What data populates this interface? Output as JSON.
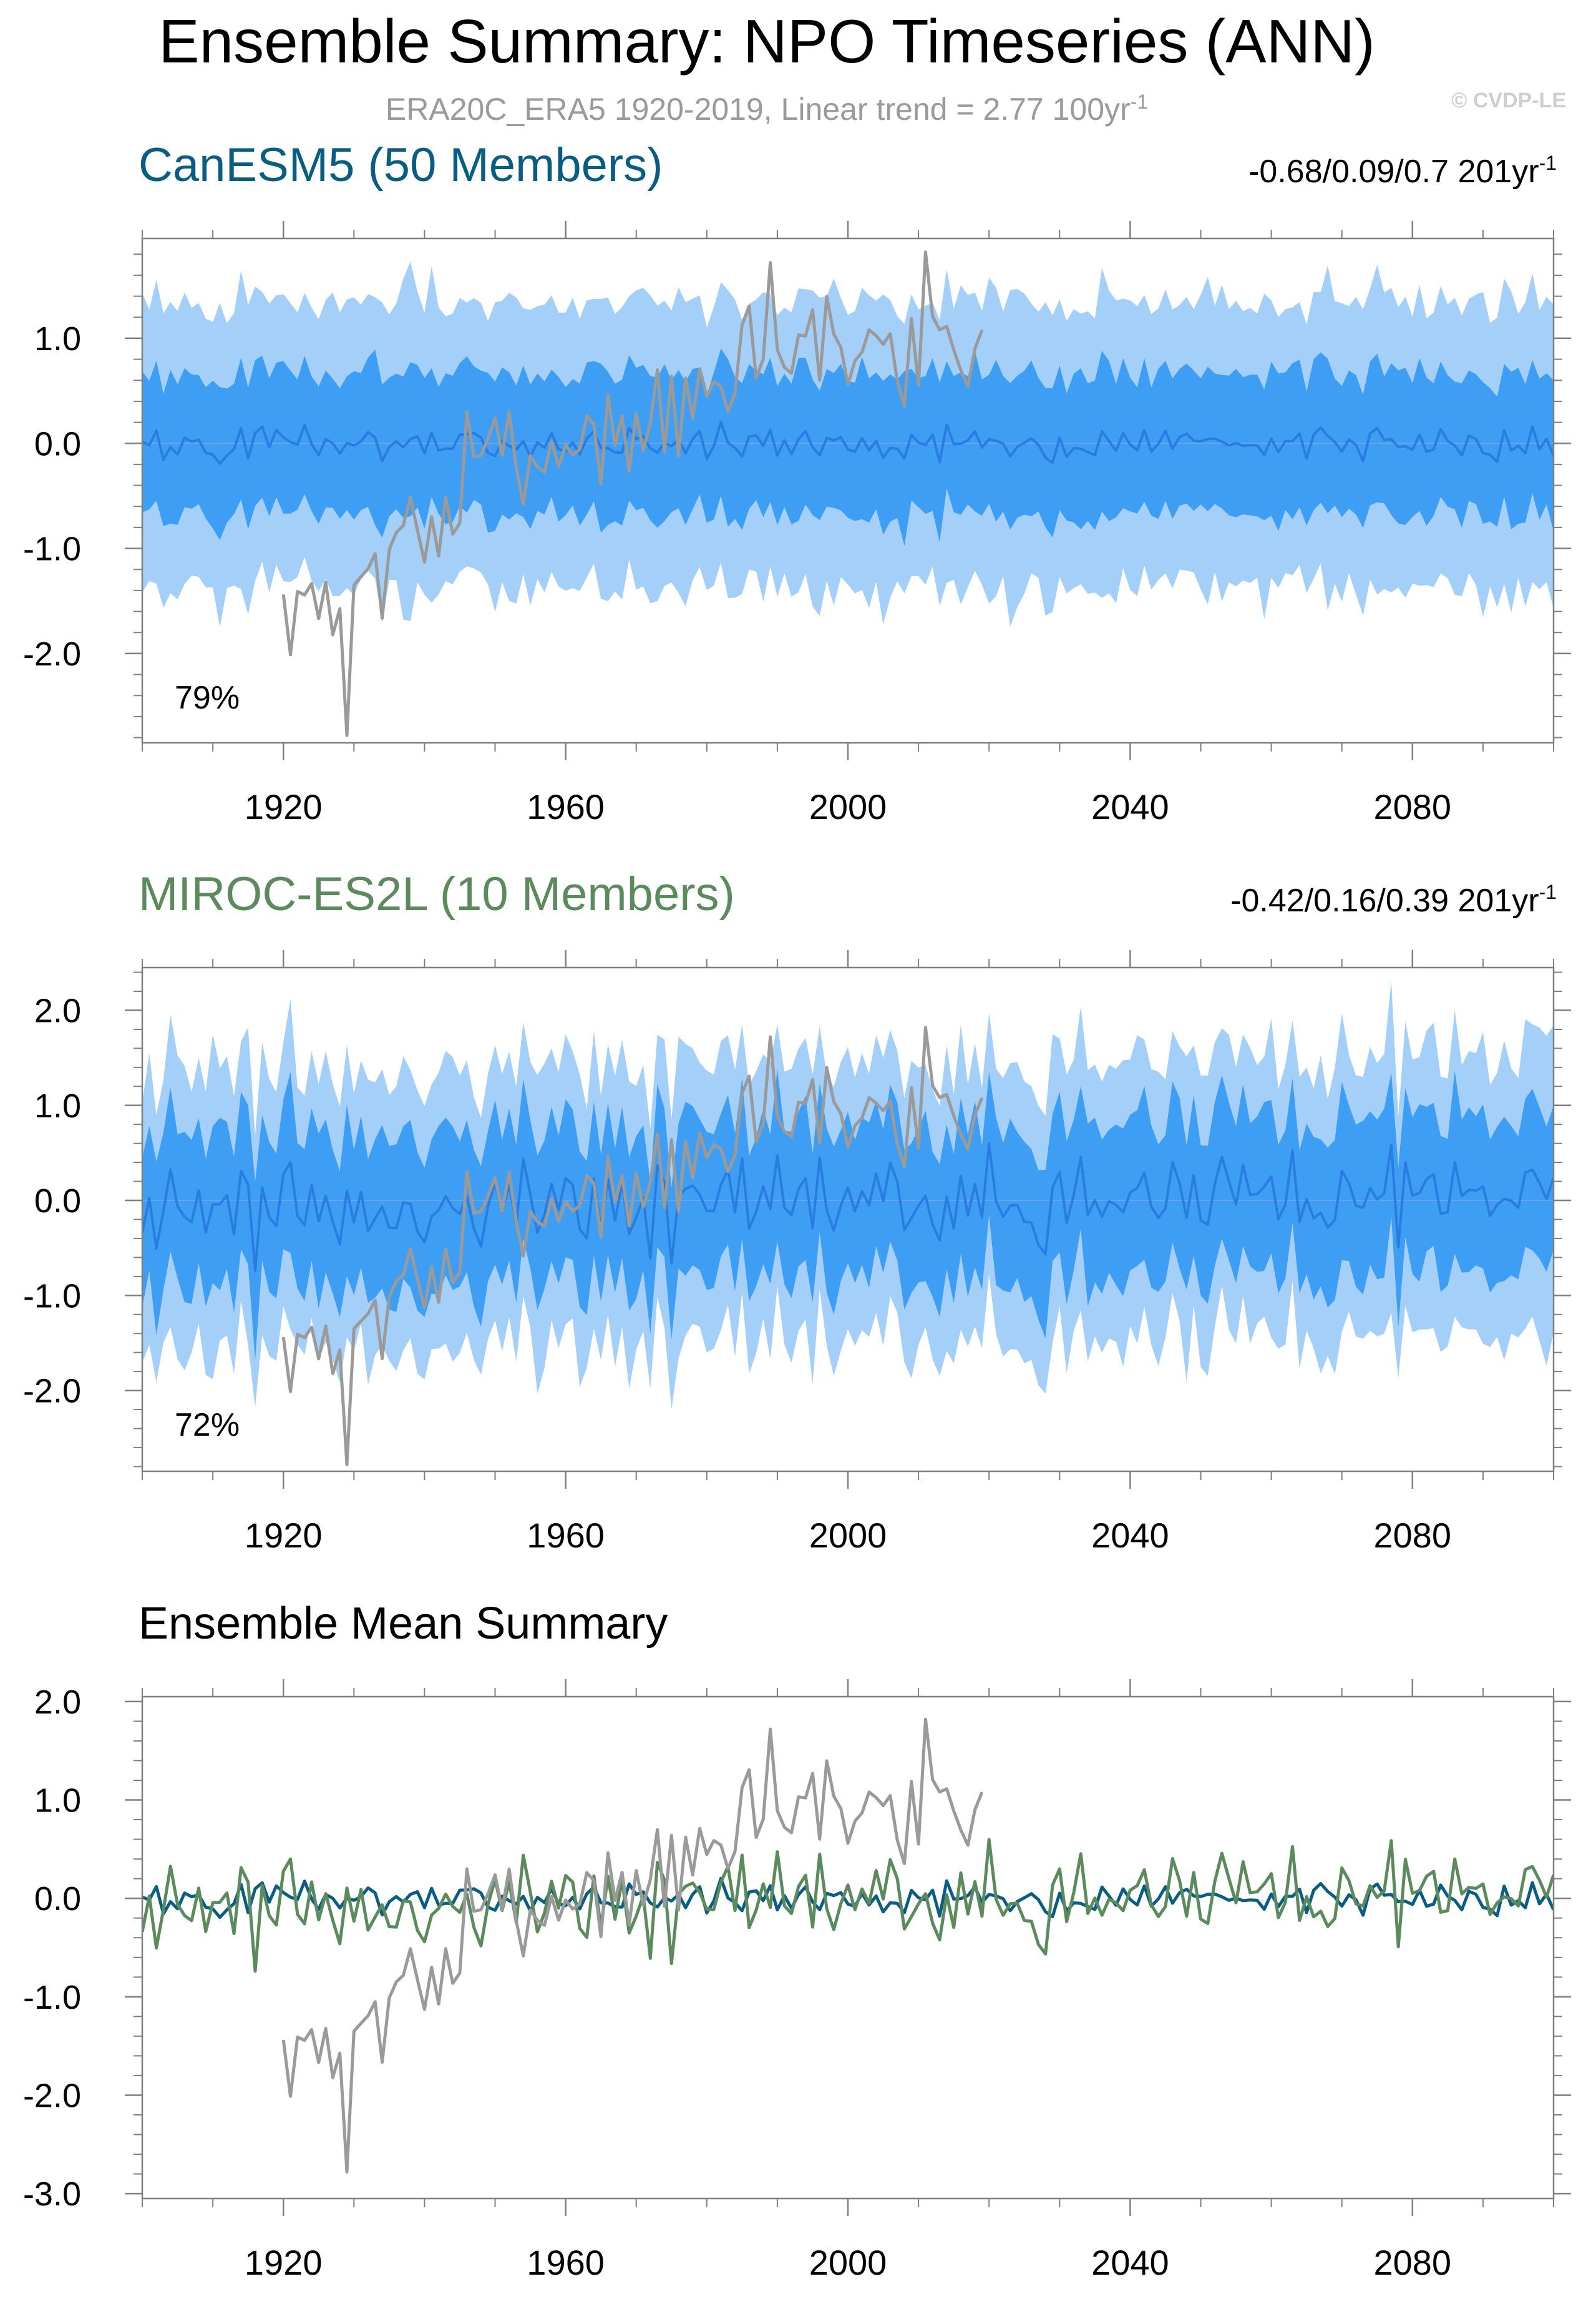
{
  "title": "Ensemble Summary: NPO Timeseries (ANN)",
  "subtitle": {
    "text": "ERA20C_ERA5 1920-2019, Linear trend = 2.77 100yr",
    "sup": "-1"
  },
  "copyright": "© CVDP-LE",
  "colors": {
    "obs": "#9a9a9a",
    "band_outer": "#a3cff8",
    "band_inner": "#3d9ef3",
    "mean_line": "#2a7de0",
    "canesm5": "#0a5d82",
    "miroc": "#5b8a5d",
    "frame": "#7f7f7f"
  },
  "chart_data": [
    {
      "type": "area",
      "name": "CanESM5",
      "panel_title": "CanESM5 (50 Members)",
      "trend_text": "-0.68/0.09/0.7 201yr",
      "trend_sup": "-1",
      "percent_label": "79%",
      "xlim": [
        1900,
        2100
      ],
      "ylim": [
        -2.85,
        1.95
      ],
      "xticks": [
        1920,
        1960,
        2000,
        2040,
        2080
      ],
      "xtick_labels": [
        "1920",
        "1960",
        "2000",
        "2040",
        "2080"
      ],
      "yticks": [
        1.0,
        0.0,
        -1.0,
        -2.0
      ],
      "ytick_labels": [
        "1.0",
        "0.0",
        "-1.0",
        "-2.0"
      ],
      "series": [
        {
          "name": "ensemble 2.5-97.5% range",
          "half_width": 1.25
        },
        {
          "name": "ensemble 10-90% range",
          "half_width": 0.6
        },
        {
          "name": "ensemble mean",
          "amplitude": 0.15
        },
        {
          "name": "ERA20C_ERA5 observations",
          "range": [
            1920,
            2019
          ]
        }
      ]
    },
    {
      "type": "area",
      "name": "MIROC-ES2L",
      "panel_title": "MIROC-ES2L (10 Members)",
      "trend_text": "-0.42/0.16/0.39 201yr",
      "trend_sup": "-1",
      "percent_label": "72%",
      "xlim": [
        1900,
        2100
      ],
      "ylim": [
        -2.85,
        2.45
      ],
      "xticks": [
        1920,
        1960,
        2000,
        2040,
        2080
      ],
      "xtick_labels": [
        "1920",
        "1960",
        "2000",
        "2040",
        "2080"
      ],
      "yticks": [
        2.0,
        1.0,
        0.0,
        -1.0,
        -2.0
      ],
      "ytick_labels": [
        "2.0",
        "1.0",
        "0.0",
        "-1.0",
        "-2.0"
      ],
      "series": [
        {
          "name": "ensemble 2.5-97.5% range",
          "half_width": 1.35
        },
        {
          "name": "ensemble 10-90% range",
          "half_width": 0.75
        },
        {
          "name": "ensemble mean",
          "amplitude": 0.45
        },
        {
          "name": "ERA20C_ERA5 observations",
          "range": [
            1920,
            2019
          ]
        }
      ]
    },
    {
      "type": "line",
      "name": "Ensemble Mean",
      "panel_title": "Ensemble Mean Summary",
      "xlim": [
        1900,
        2100
      ],
      "ylim": [
        -3.05,
        2.05
      ],
      "xticks": [
        1920,
        1960,
        2000,
        2040,
        2080
      ],
      "xtick_labels": [
        "1920",
        "1960",
        "2000",
        "2040",
        "2080"
      ],
      "yticks": [
        2.0,
        1.0,
        0.0,
        -1.0,
        -2.0,
        -3.0
      ],
      "ytick_labels": [
        "2.0",
        "1.0",
        "0.0",
        "-1.0",
        "-2.0",
        "-3.0"
      ],
      "series": [
        {
          "name": "CanESM5 ensemble mean"
        },
        {
          "name": "MIROC-ES2L ensemble mean"
        },
        {
          "name": "ERA20C_ERA5 observations",
          "range": [
            1920,
            2019
          ]
        }
      ]
    }
  ]
}
